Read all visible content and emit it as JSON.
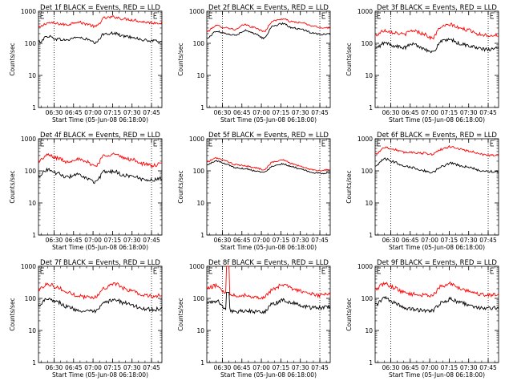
{
  "chart_data": [
    {
      "type": "line",
      "title": "Det 1f BLACK = Events, RED = LLD",
      "xlabel": "Start Time (05-Jun-08 06:18:00)",
      "ylabel": "Counts/sec",
      "y_scale": "log",
      "ylim": [
        1,
        1000
      ],
      "y_ticks": [
        "1",
        "10",
        "100",
        "1000"
      ],
      "x_ticks": [
        "06:30",
        "06:45",
        "07:00",
        "07:15",
        "07:30",
        "07:45"
      ],
      "event_markers": [
        "06:30",
        "07:45"
      ],
      "series": [
        {
          "color": "#ff0000",
          "levels": [
            0.83,
            0.88,
            0.87,
            0.86,
            0.89,
            0.87,
            0.84,
            0.93,
            0.94,
            0.92,
            0.91,
            0.89,
            0.88,
            0.88
          ]
        },
        {
          "color": "#000000",
          "levels": [
            0.68,
            0.74,
            0.71,
            0.7,
            0.73,
            0.71,
            0.67,
            0.77,
            0.77,
            0.74,
            0.73,
            0.7,
            0.69,
            0.69
          ]
        }
      ],
      "noise": 1,
      "spike": null
    },
    {
      "type": "line",
      "title": "Det 2f BLACK = Events, RED = LLD",
      "xlabel": "Start Time (05-Jun-08 06:18:00)",
      "ylabel": "Counts/sec",
      "y_scale": "log",
      "ylim": [
        1,
        1000
      ],
      "y_ticks": [
        "1",
        "10",
        "100",
        "1000"
      ],
      "x_ticks": [
        "06:30",
        "06:45",
        "07:00",
        "07:15",
        "07:30",
        "07:45"
      ],
      "event_markers": [
        "06:30",
        "07:45"
      ],
      "series": [
        {
          "color": "#ff0000",
          "levels": [
            0.79,
            0.85,
            0.83,
            0.81,
            0.86,
            0.83,
            0.79,
            0.9,
            0.92,
            0.89,
            0.88,
            0.85,
            0.83,
            0.83
          ]
        },
        {
          "color": "#000000",
          "levels": [
            0.72,
            0.79,
            0.77,
            0.75,
            0.8,
            0.77,
            0.72,
            0.85,
            0.87,
            0.83,
            0.81,
            0.78,
            0.76,
            0.76
          ]
        }
      ],
      "noise": 0.6,
      "spike": null
    },
    {
      "type": "line",
      "title": "Det 3f BLACK = Events, RED = LLD",
      "xlabel": "Start Time (05-Jun-08 06:18:00)",
      "ylabel": "Counts/sec",
      "y_scale": "log",
      "ylim": [
        1,
        1000
      ],
      "y_ticks": [
        "1",
        "10",
        "100",
        "1000"
      ],
      "x_ticks": [
        "06:30",
        "06:45",
        "07:00",
        "07:15",
        "07:30",
        "07:45"
      ],
      "event_markers": [
        "06:30",
        "07:45"
      ],
      "series": [
        {
          "color": "#ff0000",
          "levels": [
            0.75,
            0.8,
            0.78,
            0.76,
            0.8,
            0.77,
            0.72,
            0.84,
            0.86,
            0.82,
            0.8,
            0.76,
            0.75,
            0.75
          ]
        },
        {
          "color": "#000000",
          "levels": [
            0.61,
            0.67,
            0.64,
            0.62,
            0.66,
            0.62,
            0.57,
            0.69,
            0.7,
            0.66,
            0.64,
            0.61,
            0.6,
            0.62
          ]
        }
      ],
      "noise": 1.2,
      "spike": null
    },
    {
      "type": "line",
      "title": "Det 4f BLACK = Events, RED = LLD",
      "xlabel": "Start Time (05-Jun-08 06:18:00)",
      "ylabel": "Counts/sec",
      "y_scale": "log",
      "ylim": [
        1,
        1000
      ],
      "y_ticks": [
        "1",
        "10",
        "100",
        "1000"
      ],
      "x_ticks": [
        "06:30",
        "06:45",
        "07:00",
        "07:15",
        "07:30",
        "07:45"
      ],
      "event_markers": [
        "06:30",
        "07:45"
      ],
      "series": [
        {
          "color": "#ff0000",
          "levels": [
            0.77,
            0.83,
            0.8,
            0.76,
            0.79,
            0.76,
            0.72,
            0.83,
            0.84,
            0.8,
            0.78,
            0.74,
            0.72,
            0.74
          ]
        },
        {
          "color": "#000000",
          "levels": [
            0.62,
            0.68,
            0.64,
            0.6,
            0.63,
            0.59,
            0.55,
            0.66,
            0.66,
            0.62,
            0.61,
            0.58,
            0.57,
            0.59
          ]
        }
      ],
      "noise": 1.2,
      "spike": null
    },
    {
      "type": "line",
      "title": "Det 5f BLACK = Events, RED = LLD",
      "xlabel": "Start Time (05-Jun-08 06:18:00)",
      "ylabel": "Counts/sec",
      "y_scale": "log",
      "ylim": [
        1,
        1000
      ],
      "y_ticks": [
        "1",
        "10",
        "100",
        "1000"
      ],
      "x_ticks": [
        "06:30",
        "06:45",
        "07:00",
        "07:15",
        "07:30",
        "07:45"
      ],
      "event_markers": [
        "06:30",
        "07:45"
      ],
      "series": [
        {
          "color": "#ff0000",
          "levels": [
            0.76,
            0.8,
            0.77,
            0.73,
            0.72,
            0.7,
            0.68,
            0.76,
            0.78,
            0.74,
            0.71,
            0.68,
            0.67,
            0.68
          ]
        },
        {
          "color": "#000000",
          "levels": [
            0.73,
            0.77,
            0.74,
            0.7,
            0.69,
            0.67,
            0.65,
            0.72,
            0.74,
            0.71,
            0.68,
            0.65,
            0.64,
            0.65
          ]
        }
      ],
      "noise": 0.5,
      "spike": null
    },
    {
      "type": "line",
      "title": "Det 6f BLACK = Events, RED = LLD",
      "xlabel": "Start Time (05-Jun-08 06:18:00)",
      "ylabel": "Counts/sec",
      "y_scale": "log",
      "ylim": [
        1,
        1000
      ],
      "y_ticks": [
        "1",
        "10",
        "100",
        "1000"
      ],
      "x_ticks": [
        "06:30",
        "06:45",
        "07:00",
        "07:15",
        "07:30",
        "07:45"
      ],
      "event_markers": [
        "06:30",
        "07:45"
      ],
      "series": [
        {
          "color": "#ff0000",
          "levels": [
            0.84,
            0.91,
            0.89,
            0.86,
            0.86,
            0.85,
            0.84,
            0.89,
            0.92,
            0.89,
            0.87,
            0.84,
            0.83,
            0.83
          ]
        },
        {
          "color": "#000000",
          "levels": [
            0.71,
            0.79,
            0.76,
            0.72,
            0.7,
            0.67,
            0.65,
            0.71,
            0.75,
            0.72,
            0.7,
            0.67,
            0.66,
            0.66
          ]
        }
      ],
      "noise": 0.8,
      "spike": null
    },
    {
      "type": "line",
      "title": "Det 7f BLACK = Events, RED = LLD",
      "xlabel": "Start Time (05-Jun-08 06:18:00)",
      "ylabel": "Counts/sec",
      "y_scale": "log",
      "ylim": [
        1,
        1000
      ],
      "y_ticks": [
        "1",
        "10",
        "100",
        "1000"
      ],
      "x_ticks": [
        "06:30",
        "06:45",
        "07:00",
        "07:15",
        "07:30",
        "07:45"
      ],
      "event_markers": [
        "06:30",
        "07:45"
      ],
      "series": [
        {
          "color": "#ff0000",
          "levels": [
            0.76,
            0.82,
            0.78,
            0.73,
            0.7,
            0.68,
            0.68,
            0.78,
            0.82,
            0.77,
            0.74,
            0.7,
            0.69,
            0.7
          ]
        },
        {
          "color": "#000000",
          "levels": [
            0.6,
            0.67,
            0.63,
            0.58,
            0.55,
            0.53,
            0.53,
            0.62,
            0.66,
            0.62,
            0.59,
            0.56,
            0.55,
            0.56
          ]
        }
      ],
      "noise": 1.3,
      "spike": null
    },
    {
      "type": "line",
      "title": "Det 8f BLACK = Events, RED = LLD",
      "xlabel": "Start Time (05-Jun-08 06:18:00)",
      "ylabel": "Counts/sec",
      "y_scale": "log",
      "ylim": [
        1,
        1000
      ],
      "y_ticks": [
        "1",
        "10",
        "100",
        "1000"
      ],
      "x_ticks": [
        "06:30",
        "06:45",
        "07:00",
        "07:15",
        "07:30",
        "07:45"
      ],
      "event_markers": [
        "06:30",
        "07:45"
      ],
      "series": [
        {
          "color": "#ff0000",
          "levels": [
            0.77,
            0.8,
            0.73,
            0.7,
            0.7,
            0.68,
            0.68,
            0.76,
            0.81,
            0.77,
            0.74,
            0.71,
            0.7,
            0.71
          ]
        },
        {
          "color": "#000000",
          "levels": [
            0.62,
            0.64,
            0.56,
            0.53,
            0.54,
            0.53,
            0.53,
            0.61,
            0.65,
            0.62,
            0.59,
            0.57,
            0.57,
            0.58
          ]
        }
      ],
      "noise": 1.3,
      "spike": {
        "at": 0.17,
        "red_top": 1.0,
        "black_top": 0.73
      }
    },
    {
      "type": "line",
      "title": "Det 9f BLACK = Events, RED = LLD",
      "xlabel": "Start Time (05-Jun-08 06:18:00)",
      "ylabel": "Counts/sec",
      "y_scale": "log",
      "ylim": [
        1,
        1000
      ],
      "y_ticks": [
        "1",
        "10",
        "100",
        "1000"
      ],
      "x_ticks": [
        "06:30",
        "06:45",
        "07:00",
        "07:15",
        "07:30",
        "07:45"
      ],
      "event_markers": [
        "06:30",
        "07:45"
      ],
      "series": [
        {
          "color": "#ff0000",
          "levels": [
            0.76,
            0.82,
            0.78,
            0.73,
            0.71,
            0.7,
            0.7,
            0.79,
            0.82,
            0.77,
            0.74,
            0.71,
            0.7,
            0.71
          ]
        },
        {
          "color": "#000000",
          "levels": [
            0.6,
            0.67,
            0.62,
            0.57,
            0.55,
            0.54,
            0.54,
            0.62,
            0.66,
            0.62,
            0.59,
            0.57,
            0.56,
            0.57
          ]
        }
      ],
      "noise": 1.3,
      "spike": null
    }
  ]
}
